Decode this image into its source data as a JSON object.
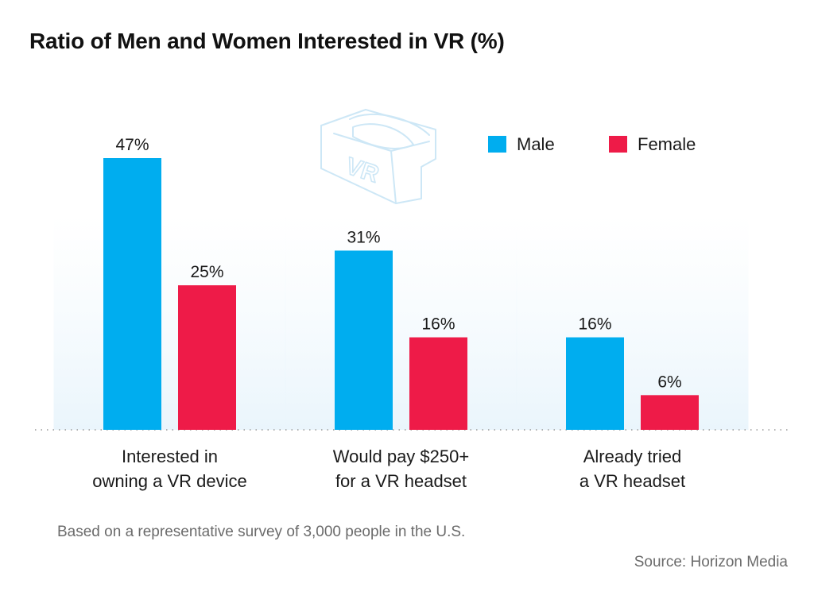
{
  "chart_data": {
    "type": "bar",
    "title": "Ratio of Men and Women Interested in VR (%)",
    "categories": [
      [
        "Interested in",
        "owning a VR device"
      ],
      [
        "Would pay $250+",
        "for a VR headset"
      ],
      [
        "Already tried",
        "a VR headset"
      ]
    ],
    "series": [
      {
        "name": "Male",
        "values": [
          47,
          31,
          16
        ],
        "color": "#00adef"
      },
      {
        "name": "Female",
        "values": [
          25,
          16,
          6
        ],
        "color": "#ee1b48"
      }
    ],
    "value_suffix": "%",
    "ylim": [
      0,
      47
    ],
    "legend_position": "top-right",
    "grid": false,
    "xlabel": "",
    "ylabel": ""
  },
  "decoration": {
    "icon": "vr-headset-icon",
    "icon_text": "VR"
  },
  "footer": {
    "note": "Based on a representative survey of 3,000 people in the U.S.",
    "source": "Source: Horizon Media"
  }
}
